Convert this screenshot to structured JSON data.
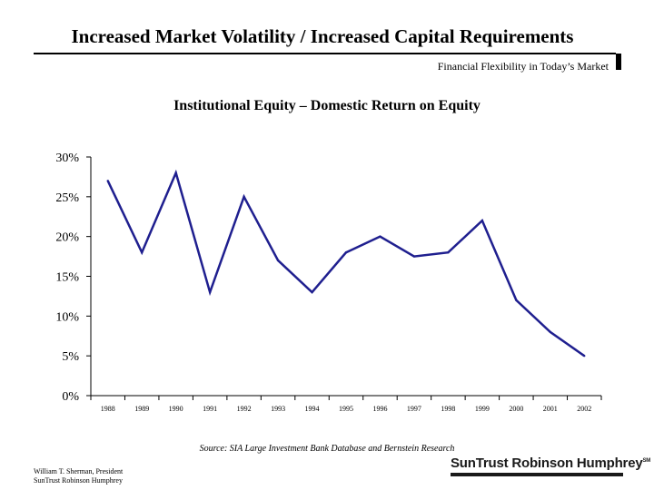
{
  "header": {
    "title": "Increased Market Volatility / Increased Capital Requirements",
    "subtitle": "Financial Flexibility in Today’s Market"
  },
  "chart_data": {
    "type": "line",
    "title": "Institutional Equity – Domestic Return on Equity",
    "xlabel": "",
    "ylabel": "",
    "categories": [
      "1988",
      "1989",
      "1990",
      "1991",
      "1992",
      "1993",
      "1994",
      "1995",
      "1996",
      "1997",
      "1998",
      "1999",
      "2000",
      "2001",
      "2002"
    ],
    "series": [
      {
        "values": [
          27,
          18,
          28,
          13,
          25,
          17,
          13,
          18,
          20,
          17.5,
          18,
          22,
          12,
          8,
          5
        ]
      }
    ],
    "ylim": [
      0,
      30
    ],
    "yticks": [
      0,
      5,
      10,
      15,
      20,
      25,
      30
    ],
    "ytick_labels": [
      "0%",
      "5%",
      "10%",
      "15%",
      "20%",
      "25%",
      "30%"
    ],
    "grid": false,
    "line_color": "#1f1f8f"
  },
  "source_note": "Source: SIA Large Investment Bank Database and Bernstein Research",
  "footer": {
    "presenter_line1": "William T. Sherman, President",
    "presenter_line2": "SunTrust Robinson Humphrey",
    "brand": "SunTrust Robinson Humphrey",
    "brand_mark": "SM"
  }
}
